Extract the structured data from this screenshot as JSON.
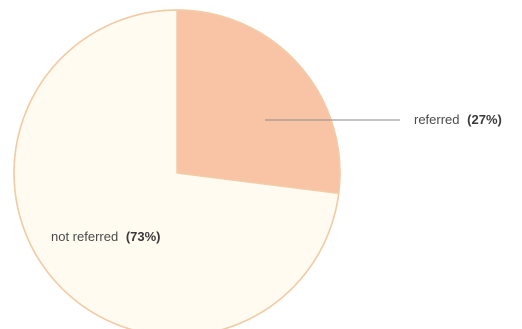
{
  "chart_data": {
    "type": "pie",
    "title": "",
    "start_angle_deg": 0,
    "direction": "clockwise",
    "legend": "none",
    "slices": [
      {
        "label": "referred",
        "pct_text": "(27%)",
        "value": 27,
        "color": "#f8c4a5"
      },
      {
        "label": "not referred",
        "pct_text": "(73%)",
        "value": 73,
        "color": "#fffbf0"
      }
    ],
    "outline_color": "#f2cca6",
    "leader_line_color": "#8a8a8a"
  }
}
